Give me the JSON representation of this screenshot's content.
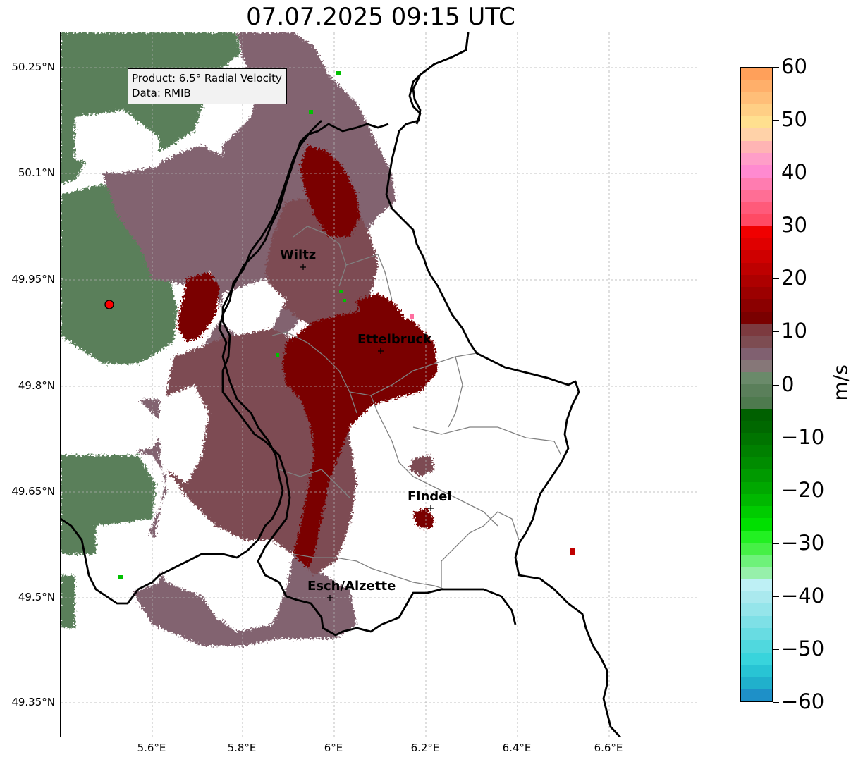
{
  "title": "07.07.2025 09:15 UTC",
  "info": {
    "product": "Product: 6.5° Radial Velocity",
    "data_source": "Data: RMIB"
  },
  "lat_ticks": [
    "50.25°N",
    "50.1°N",
    "49.95°N",
    "49.8°N",
    "49.65°N",
    "49.5°N",
    "49.35°N"
  ],
  "lon_ticks": [
    "5.6°E",
    "5.8°E",
    "6°E",
    "6.2°E",
    "6.4°E",
    "6.6°E"
  ],
  "cities": [
    {
      "name": "Wiltz",
      "lon": 5.93,
      "lat": 49.965
    },
    {
      "name": "Ettelbruck",
      "lon": 6.1,
      "lat": 49.85
    },
    {
      "name": "Findel",
      "lon": 6.21,
      "lat": 49.627
    },
    {
      "name": "Esch/Alzette",
      "lon": 5.99,
      "lat": 49.499
    }
  ],
  "radar_site": {
    "lon": 5.505,
    "lat": 49.915,
    "color": "#ff0000"
  },
  "colorbar": {
    "label": "m/s",
    "min": -60,
    "max": 60,
    "tick_labels": [
      "60",
      "50",
      "40",
      "30",
      "20",
      "10",
      "0",
      "−10",
      "−20",
      "−30",
      "−40",
      "−50",
      "−60"
    ],
    "tick_values": [
      60,
      50,
      40,
      30,
      20,
      10,
      0,
      -10,
      -20,
      -30,
      -40,
      -50,
      -60
    ],
    "colors_top_to_bottom": [
      "#ffa05a",
      "#ffaf6a",
      "#ffbe78",
      "#ffcf85",
      "#ffe08f",
      "#ffd2a8",
      "#ffb4b4",
      "#ff9ec8",
      "#ff8ad0",
      "#ff7cb0",
      "#ff6e95",
      "#ff5a7a",
      "#ff4a64",
      "#f00000",
      "#e00000",
      "#cf0000",
      "#be0000",
      "#ad0000",
      "#9c0000",
      "#8b0000",
      "#7a0000",
      "#7c3a3f",
      "#7d4c52",
      "#806070",
      "#867778",
      "#6a8a6a",
      "#5a7f5a",
      "#4e7a4e",
      "#006000",
      "#006800",
      "#007400",
      "#008000",
      "#008c00",
      "#009a00",
      "#00a800",
      "#00b800",
      "#00cc00",
      "#00e000",
      "#22f022",
      "#46f046",
      "#6ef27a",
      "#96f0aa",
      "#bef0f5",
      "#aae9ee",
      "#95e5ea",
      "#7ee0e6",
      "#68dce2",
      "#50d8de",
      "#38d4dc",
      "#28c4d4",
      "#20b0cc",
      "#1e90c8"
    ]
  },
  "colors": {
    "grid": "#b0b0b0",
    "border_country": "#000000",
    "border_canton": "#808080"
  }
}
